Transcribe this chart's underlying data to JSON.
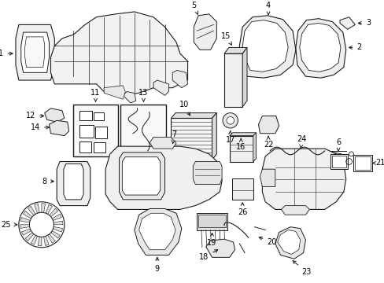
{
  "bg_color": "#ffffff",
  "fig_width": 4.89,
  "fig_height": 3.6,
  "dpi": 100,
  "line_color": "#1a1a1a",
  "text_color": "#000000",
  "font_size": 7.0,
  "font_size_small": 6.5
}
